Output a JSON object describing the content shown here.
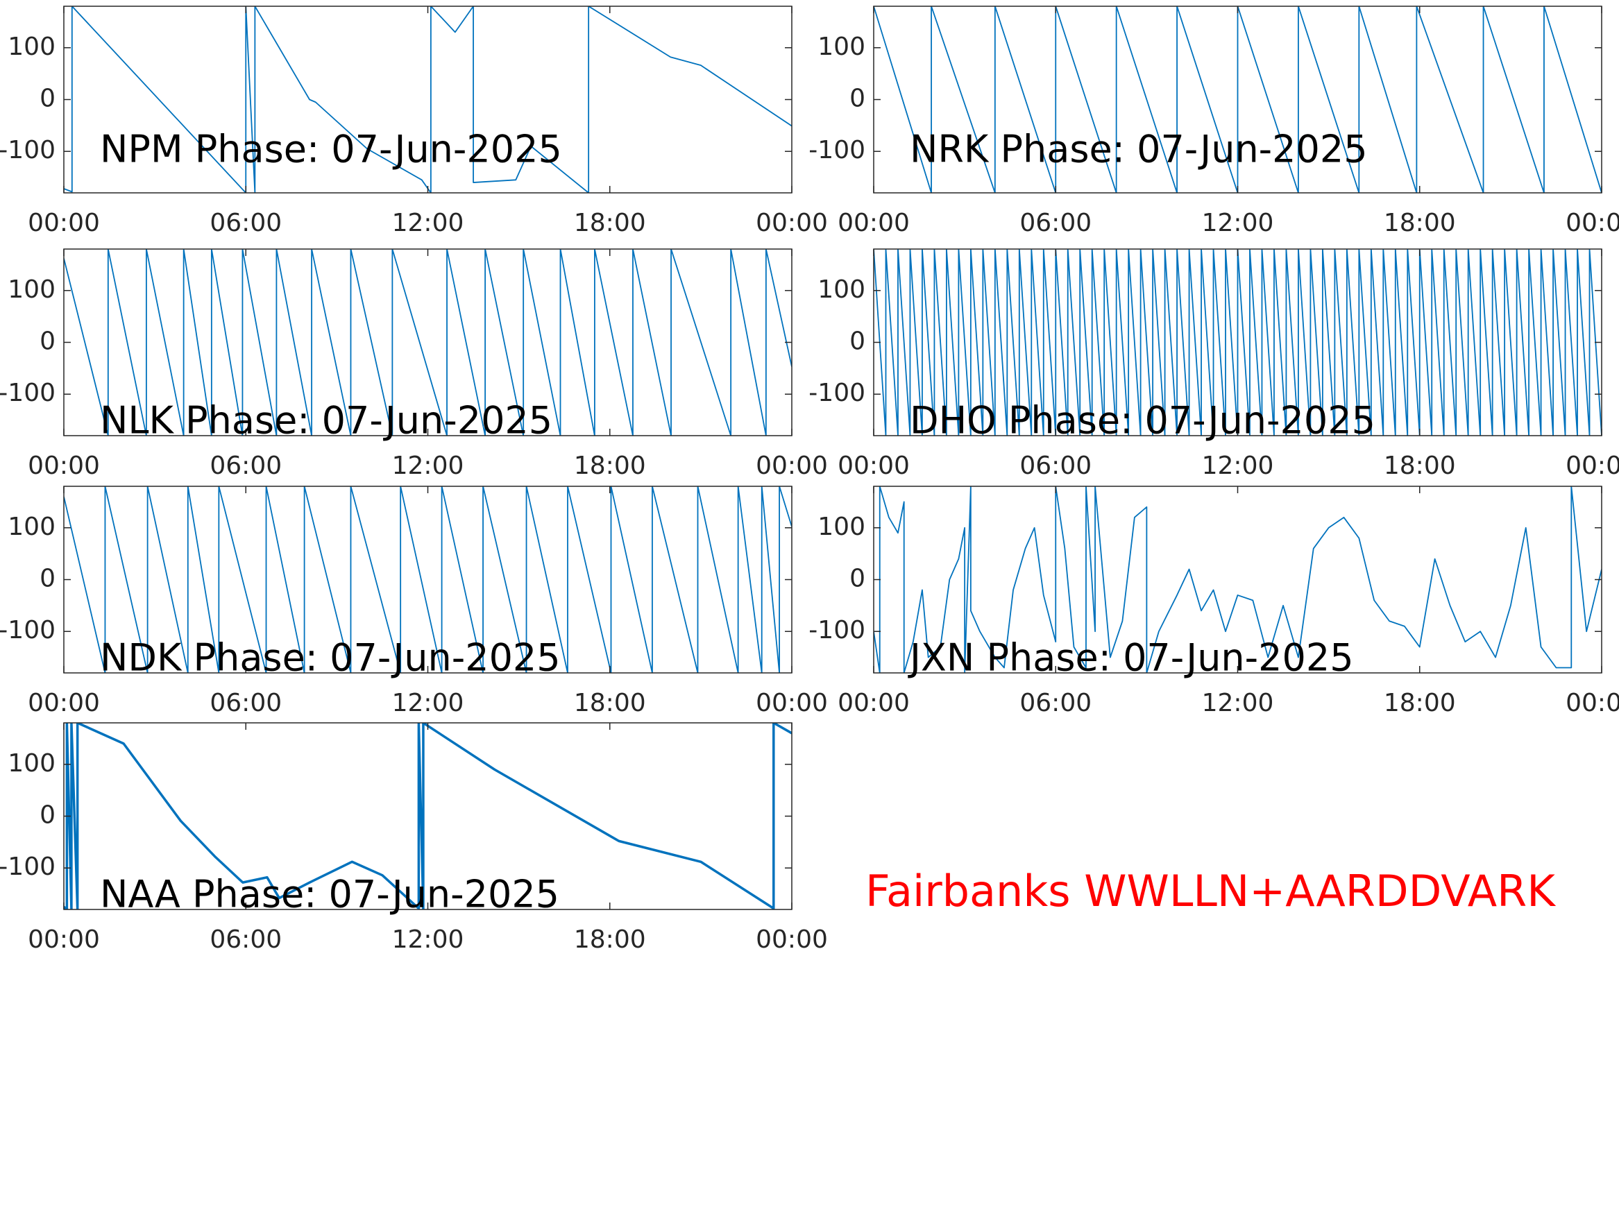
{
  "chart_data": [
    {
      "type": "line",
      "title": "NPM Phase: 07-Jun-2025",
      "color": "#0072bd",
      "line_width": 1.8,
      "x": [
        0,
        0.27,
        0.27,
        6.0,
        6.0,
        6.3,
        6.3,
        8.1,
        8.3,
        10,
        11.8,
        12.1,
        12.1,
        12.9,
        13.5,
        13.5,
        14.9,
        15.4,
        17.3,
        17.3,
        20,
        21,
        24
      ],
      "values": [
        -172,
        -178,
        180,
        -180,
        180,
        -180,
        180,
        0,
        -5,
        -95,
        -155,
        -180,
        180,
        130,
        180,
        -160,
        -155,
        -90,
        -180,
        180,
        82,
        66,
        -51
      ],
      "xlim": [
        0,
        24
      ],
      "xticks": [
        {
          "value": 0,
          "label": "00:00"
        },
        {
          "value": 6,
          "label": "06:00"
        },
        {
          "value": 12,
          "label": "12:00"
        },
        {
          "value": 18,
          "label": "18:00"
        },
        {
          "value": 24,
          "label": "00:00"
        }
      ],
      "ylim": [
        -180,
        180
      ],
      "yticks": [
        -100,
        0,
        100
      ]
    },
    {
      "type": "line",
      "title": "NRK Phase: 07-Jun-2025",
      "color": "#0072bd",
      "line_width": 1.8,
      "x": [
        0,
        1.9,
        1.9,
        4.0,
        4.0,
        6.0,
        6.0,
        8.0,
        8.0,
        10.0,
        10.0,
        12.0,
        12.0,
        14.0,
        14.0,
        16.0,
        16.0,
        17.9,
        17.9,
        20.1,
        20.1,
        22.1,
        22.1,
        24
      ],
      "values": [
        180,
        -180,
        180,
        -180,
        180,
        -180,
        180,
        -180,
        180,
        -180,
        180,
        -180,
        180,
        -180,
        180,
        -180,
        180,
        -180,
        180,
        -180,
        180,
        -180,
        180,
        -180
      ],
      "xlim": [
        0,
        24
      ],
      "xticks": [
        {
          "value": 0,
          "label": "00:00"
        },
        {
          "value": 6,
          "label": "06:00"
        },
        {
          "value": 12,
          "label": "12:00"
        },
        {
          "value": 18,
          "label": "18:00"
        },
        {
          "value": 24,
          "label": "00:00"
        }
      ],
      "ylim": [
        -180,
        180
      ],
      "yticks": [
        -100,
        0,
        100
      ]
    },
    {
      "type": "line",
      "title": "NLK Phase: 07-Jun-2025",
      "color": "#0072bd",
      "line_width": 1.8,
      "x": [
        0,
        1.46,
        1.46,
        2.72,
        2.72,
        3.95,
        3.95,
        4.87,
        4.87,
        5.89,
        5.89,
        7.01,
        7.01,
        8.17,
        8.17,
        9.46,
        9.46,
        10.83,
        10.83,
        12.63,
        12.63,
        13.89,
        13.89,
        15.15,
        15.15,
        16.37,
        16.37,
        17.5,
        17.5,
        18.76,
        18.76,
        20.02,
        20.02,
        21.99,
        21.99,
        23.15,
        23.15,
        24
      ],
      "values": [
        162,
        -180,
        180,
        -180,
        180,
        -180,
        180,
        -180,
        180,
        -180,
        180,
        -180,
        180,
        -180,
        180,
        -180,
        180,
        -180,
        180,
        -180,
        180,
        -180,
        180,
        -180,
        180,
        -180,
        180,
        -180,
        180,
        -180,
        180,
        -180,
        180,
        -180,
        180,
        -180,
        180,
        -47
      ],
      "xlim": [
        0,
        24
      ],
      "xticks": [
        {
          "value": 0,
          "label": "00:00"
        },
        {
          "value": 6,
          "label": "06:00"
        },
        {
          "value": 12,
          "label": "12:00"
        },
        {
          "value": 18,
          "label": "18:00"
        },
        {
          "value": 24,
          "label": "00:00"
        }
      ],
      "ylim": [
        -180,
        180
      ],
      "yticks": [
        -100,
        0,
        100
      ]
    },
    {
      "type": "line",
      "title": "DHO Phase: 07-Jun-2025",
      "color": "#0072bd",
      "line_width": 1.8,
      "x": [
        0,
        0.4,
        0.4,
        0.8,
        0.8,
        1.2,
        1.2,
        1.6,
        1.6,
        2,
        2,
        2.4,
        2.4,
        2.8,
        2.8,
        3.2,
        3.2,
        3.6,
        3.6,
        4,
        4,
        4.4,
        4.4,
        4.8,
        4.8,
        5.2,
        5.2,
        5.6,
        5.6,
        6,
        6,
        6.4,
        6.4,
        6.8,
        6.8,
        7.2,
        7.2,
        7.6,
        7.6,
        8,
        8,
        8.4,
        8.4,
        8.8,
        8.8,
        9.2,
        9.2,
        9.6,
        9.6,
        10,
        10,
        10.4,
        10.4,
        10.8,
        10.8,
        11.2,
        11.2,
        11.6,
        11.6,
        12,
        12,
        12.4,
        12.4,
        12.8,
        12.8,
        13.2,
        13.2,
        13.6,
        13.6,
        14,
        14,
        14.4,
        14.4,
        14.8,
        14.8,
        15.2,
        15.2,
        15.6,
        15.6,
        16,
        16,
        16.4,
        16.4,
        16.8,
        16.8,
        17.2,
        17.2,
        17.6,
        17.6,
        18,
        18,
        18.4,
        18.4,
        18.8,
        18.8,
        19.2,
        19.2,
        19.6,
        19.6,
        20,
        20,
        20.4,
        20.4,
        20.8,
        20.8,
        21.2,
        21.2,
        21.6,
        21.6,
        22,
        22,
        22.4,
        22.4,
        22.8,
        22.8,
        23.2,
        23.2,
        23.6,
        23.6,
        24
      ],
      "values": [
        180,
        -180,
        180,
        -180,
        180,
        -180,
        180,
        -180,
        180,
        -180,
        180,
        -180,
        180,
        -180,
        180,
        -180,
        180,
        -180,
        180,
        -180,
        180,
        -180,
        180,
        -180,
        180,
        -180,
        180,
        -180,
        180,
        -180,
        180,
        -180,
        180,
        -180,
        180,
        -180,
        180,
        -180,
        180,
        -180,
        180,
        -180,
        180,
        -180,
        180,
        -180,
        180,
        -180,
        180,
        -180,
        180,
        -180,
        180,
        -180,
        180,
        -180,
        180,
        -180,
        180,
        -180,
        180,
        -180,
        180,
        -180,
        180,
        -180,
        180,
        -180,
        180,
        -180,
        180,
        -180,
        180,
        -180,
        180,
        -180,
        180,
        -180,
        180,
        -180,
        180,
        -180,
        180,
        -180,
        180,
        -180,
        180,
        -180,
        180,
        -180,
        180,
        -180,
        180,
        -180,
        180,
        -180,
        180,
        -180,
        180,
        -180,
        180,
        -180,
        180,
        -180,
        180,
        -180,
        180,
        -180,
        180,
        -180,
        180,
        -180,
        180,
        -180,
        180,
        -180,
        180,
        -180,
        180,
        -180
      ],
      "xlim": [
        0,
        24
      ],
      "xticks": [
        {
          "value": 0,
          "label": "00:00"
        },
        {
          "value": 6,
          "label": "06:00"
        },
        {
          "value": 12,
          "label": "12:00"
        },
        {
          "value": 18,
          "label": "18:00"
        },
        {
          "value": 24,
          "label": "00:00"
        }
      ],
      "ylim": [
        -180,
        180
      ],
      "yticks": [
        -100,
        0,
        100
      ]
    },
    {
      "type": "line",
      "title": "NDK Phase: 07-Jun-2025",
      "color": "#0072bd",
      "line_width": 1.8,
      "x": [
        0,
        1.36,
        1.36,
        2.76,
        2.76,
        4.09,
        4.09,
        5.11,
        5.11,
        6.67,
        6.67,
        7.93,
        7.93,
        9.46,
        9.46,
        11.1,
        11.1,
        12.46,
        12.46,
        13.82,
        13.82,
        15.25,
        15.25,
        16.61,
        16.61,
        18.04,
        18.04,
        19.4,
        19.4,
        20.9,
        20.9,
        22.23,
        22.23,
        23.01,
        23.01,
        23.59,
        23.59,
        24
      ],
      "values": [
        160,
        -180,
        180,
        -180,
        180,
        -180,
        180,
        -180,
        180,
        -180,
        180,
        -180,
        180,
        -180,
        180,
        -180,
        180,
        -180,
        180,
        -180,
        180,
        -180,
        180,
        -180,
        180,
        -180,
        180,
        -180,
        180,
        -180,
        180,
        -180,
        180,
        -180,
        180,
        -180,
        180,
        102
      ],
      "xlim": [
        0,
        24
      ],
      "xticks": [
        {
          "value": 0,
          "label": "00:00"
        },
        {
          "value": 6,
          "label": "06:00"
        },
        {
          "value": 12,
          "label": "12:00"
        },
        {
          "value": 18,
          "label": "18:00"
        },
        {
          "value": 24,
          "label": "00:00"
        }
      ],
      "ylim": [
        -180,
        180
      ],
      "yticks": [
        -100,
        0,
        100
      ]
    },
    {
      "type": "line",
      "title": "JXN Phase: 07-Jun-2025",
      "color": "#0072bd",
      "line_width": 1.8,
      "x": [
        0,
        0.2,
        0.2,
        0.5,
        0.8,
        1.0,
        1.0,
        1.3,
        1.6,
        1.8,
        2.2,
        2.5,
        2.8,
        3.0,
        3.0,
        3.2,
        3.2,
        3.5,
        4.0,
        4.3,
        4.6,
        5.0,
        5.3,
        5.6,
        6.0,
        6.0,
        6.3,
        6.6,
        7.0,
        7.0,
        7.3,
        7.3,
        7.8,
        8.2,
        8.6,
        9.0,
        9.0,
        9.4,
        10.0,
        10.4,
        10.8,
        11.2,
        11.6,
        12.0,
        12.5,
        13.0,
        13.5,
        14.0,
        14.5,
        15.0,
        15.5,
        16.0,
        16.5,
        17.0,
        17.5,
        18.0,
        18.5,
        19.0,
        19.5,
        20.0,
        20.5,
        21.0,
        21.5,
        22.0,
        22.5,
        23.0,
        23.0,
        23.5,
        24
      ],
      "values": [
        -100,
        -180,
        180,
        120,
        90,
        150,
        -180,
        -120,
        -20,
        -150,
        -130,
        0,
        40,
        100,
        -180,
        180,
        -60,
        -100,
        -150,
        -170,
        -20,
        60,
        100,
        -30,
        -120,
        180,
        60,
        -130,
        -170,
        180,
        -100,
        180,
        -150,
        -80,
        120,
        140,
        -180,
        -100,
        -30,
        20,
        -60,
        -20,
        -100,
        -30,
        -40,
        -150,
        -50,
        -150,
        60,
        100,
        120,
        80,
        -40,
        -80,
        -90,
        -130,
        40,
        -50,
        -120,
        -100,
        -150,
        -50,
        100,
        -130,
        -170,
        -170,
        180,
        -100,
        20
      ],
      "xlim": [
        0,
        24
      ],
      "xticks": [
        {
          "value": 0,
          "label": "00:00"
        },
        {
          "value": 6,
          "label": "06:00"
        },
        {
          "value": 12,
          "label": "12:00"
        },
        {
          "value": 18,
          "label": "18:00"
        },
        {
          "value": 24,
          "label": "00:00"
        }
      ],
      "ylim": [
        -180,
        180
      ],
      "yticks": [
        -100,
        0,
        100
      ]
    },
    {
      "type": "line",
      "title": "NAA Phase: 07-Jun-2025",
      "color": "#0072bd",
      "line_width": 3.5,
      "x": [
        0,
        0.1,
        0.1,
        0.25,
        0.25,
        0.45,
        0.45,
        1.97,
        3.85,
        5,
        5.9,
        6.7,
        7.1,
        8.1,
        9.5,
        10.5,
        11.7,
        11.7,
        11.85,
        11.85,
        14.2,
        18.3,
        21,
        23.4,
        23.4,
        24
      ],
      "values": [
        -175,
        -180,
        180,
        -180,
        180,
        -180,
        180,
        140,
        -9,
        -79,
        -128,
        -118,
        -158,
        -128,
        -88,
        -114,
        -178,
        180,
        -180,
        180,
        90,
        -48,
        -88,
        -178,
        180,
        160
      ],
      "xlim": [
        0,
        24
      ],
      "xticks": [
        {
          "value": 0,
          "label": "00:00"
        },
        {
          "value": 6,
          "label": "06:00"
        },
        {
          "value": 12,
          "label": "12:00"
        },
        {
          "value": 18,
          "label": "18:00"
        },
        {
          "value": 24,
          "label": "00:00"
        }
      ],
      "ylim": [
        -180,
        180
      ],
      "yticks": [
        -100,
        0,
        100
      ]
    }
  ],
  "annotation": {
    "text": "Fairbanks WWLLN+AARDDVARK",
    "color": "#ff0000"
  }
}
